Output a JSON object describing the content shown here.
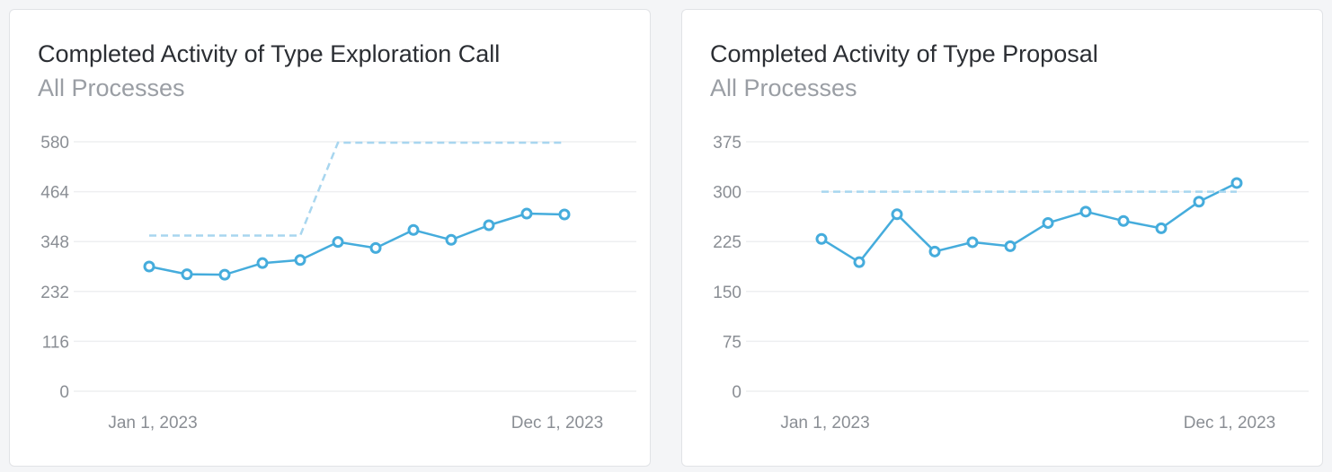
{
  "colors": {
    "series": "#45acdc",
    "target": "#a8d6ef",
    "point_fill": "#ffffff"
  },
  "chart_data": [
    {
      "type": "line",
      "title": "Completed Activity of Type Exploration Call",
      "subtitle": "All Processes",
      "x": [
        "2023-01-01",
        "2023-02-01",
        "2023-03-01",
        "2023-04-01",
        "2023-05-01",
        "2023-06-01",
        "2023-07-01",
        "2023-08-01",
        "2023-09-01",
        "2023-10-01",
        "2023-11-01",
        "2023-12-01"
      ],
      "x_tick_labels": [
        "Jan 1, 2023",
        "Dec 1, 2023"
      ],
      "y_ticks": [
        0,
        116,
        232,
        348,
        464,
        580
      ],
      "ylim": [
        0,
        580
      ],
      "grid": true,
      "series": [
        {
          "values": [
            290,
            272,
            271,
            298,
            305,
            347,
            333,
            375,
            352,
            386,
            413,
            411
          ],
          "style": "solid-with-markers"
        },
        {
          "values": [
            362,
            362,
            362,
            362,
            362,
            578,
            578,
            578,
            578,
            578,
            578,
            578
          ],
          "style": "dashed",
          "step_transition": [
            4,
            5
          ]
        }
      ]
    },
    {
      "type": "line",
      "title": "Completed Activity of Type Proposal",
      "subtitle": "All Processes",
      "x": [
        "2023-01-01",
        "2023-02-01",
        "2023-03-01",
        "2023-04-01",
        "2023-05-01",
        "2023-06-01",
        "2023-07-01",
        "2023-08-01",
        "2023-09-01",
        "2023-10-01",
        "2023-11-01",
        "2023-12-01"
      ],
      "x_tick_labels": [
        "Jan 1, 2023",
        "Dec 1, 2023"
      ],
      "y_ticks": [
        0,
        75,
        150,
        225,
        300,
        375
      ],
      "ylim": [
        0,
        375
      ],
      "grid": true,
      "series": [
        {
          "values": [
            229,
            194,
            266,
            210,
            224,
            218,
            253,
            270,
            256,
            245,
            285,
            313
          ],
          "style": "solid-with-markers"
        },
        {
          "values": [
            300,
            300,
            300,
            300,
            300,
            300,
            300,
            300,
            300,
            300,
            300,
            300
          ],
          "style": "dashed"
        }
      ]
    }
  ]
}
